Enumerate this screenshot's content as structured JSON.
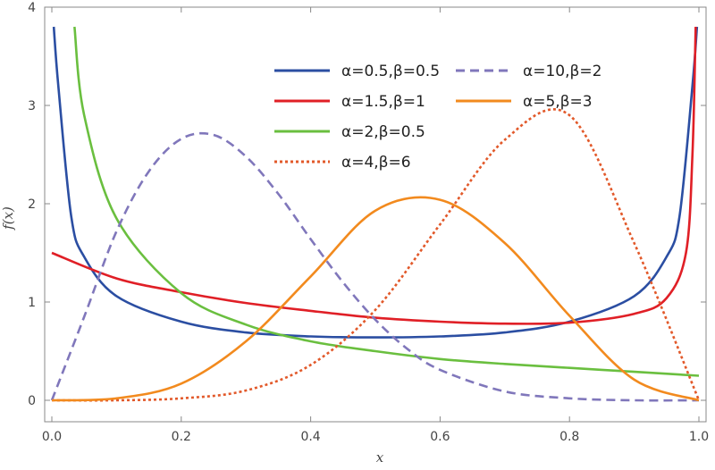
{
  "chart_data": {
    "type": "line",
    "title": "",
    "xlabel": "x",
    "ylabel": "f(x)",
    "xlim": [
      0,
      1
    ],
    "ylim": [
      0,
      4
    ],
    "xticks": [
      0.0,
      0.2,
      0.4,
      0.6,
      0.8,
      1.0
    ],
    "xtick_labels": [
      "0.0",
      "0.2",
      "0.4",
      "0.6",
      "0.8",
      "1.0"
    ],
    "yticks": [
      0,
      1,
      2,
      3,
      4
    ],
    "ytick_labels": [
      "0",
      "1",
      "2",
      "3",
      "4"
    ],
    "grid": false,
    "legend_position": "top-right",
    "series": [
      {
        "name": "α=0.5,β=0.5",
        "color": "#2b4ea2",
        "dash": "solid",
        "x": [
          0.003,
          0.01,
          0.03,
          0.05,
          0.1,
          0.2,
          0.3,
          0.4,
          0.5,
          0.6,
          0.7,
          0.8,
          0.9,
          0.95,
          0.97,
          0.99,
          0.997
        ],
        "y": [
          3.8,
          3.2,
          1.87,
          1.46,
          1.06,
          0.8,
          0.69,
          0.65,
          0.64,
          0.65,
          0.69,
          0.8,
          1.06,
          1.46,
          1.87,
          3.2,
          3.8
        ]
      },
      {
        "name": "α=1.5,β=1",
        "color": "#e01f26",
        "dash": "solid",
        "x": [
          0.0,
          0.1,
          0.2,
          0.3,
          0.4,
          0.5,
          0.6,
          0.7,
          0.8,
          0.9,
          0.95,
          0.98,
          0.99,
          0.995
        ],
        "y": [
          1.5,
          1.24,
          1.1,
          0.99,
          0.91,
          0.84,
          0.8,
          0.78,
          0.79,
          0.88,
          1.04,
          1.5,
          2.5,
          3.8
        ]
      },
      {
        "name": "α=2,β=0.5",
        "color": "#6abf3f",
        "dash": "solid",
        "x": [
          0.035,
          0.05,
          0.1,
          0.2,
          0.3,
          0.4,
          0.5,
          0.6,
          0.7,
          0.8,
          0.9,
          1.0
        ],
        "y": [
          3.8,
          2.9,
          1.85,
          1.09,
          0.77,
          0.6,
          0.5,
          0.42,
          0.37,
          0.33,
          0.29,
          0.25
        ]
      },
      {
        "name": "α=4,β=6",
        "color": "#e2592a",
        "dash": "dotted",
        "x": [
          0.0,
          0.1,
          0.2,
          0.3,
          0.4,
          0.5,
          0.6,
          0.7,
          0.8,
          0.9,
          1.0
        ],
        "y": [
          0.0,
          0.0,
          0.02,
          0.1,
          0.36,
          0.92,
          1.79,
          2.65,
          2.9,
          1.6,
          0.0
        ]
      },
      {
        "name": "α=10,β=2",
        "color": "#8077bb",
        "dash": "dashed",
        "x": [
          0.0,
          0.05,
          0.1,
          0.15,
          0.2,
          0.25,
          0.3,
          0.35,
          0.4,
          0.45,
          0.5,
          0.55,
          0.6,
          0.7,
          0.8,
          0.9,
          1.0
        ],
        "y": [
          0.0,
          0.85,
          1.72,
          2.33,
          2.66,
          2.7,
          2.48,
          2.1,
          1.64,
          1.2,
          0.82,
          0.52,
          0.31,
          0.09,
          0.02,
          0.0,
          0.0
        ]
      },
      {
        "name": "α=5,β=3",
        "color": "#f28a1e",
        "dash": "solid",
        "x": [
          0.0,
          0.1,
          0.2,
          0.3,
          0.4,
          0.5,
          0.6,
          0.7,
          0.8,
          0.9,
          1.0
        ],
        "y": [
          0.0,
          0.02,
          0.17,
          0.6,
          1.26,
          1.93,
          2.04,
          1.6,
          0.86,
          0.21,
          0.0
        ]
      }
    ]
  }
}
